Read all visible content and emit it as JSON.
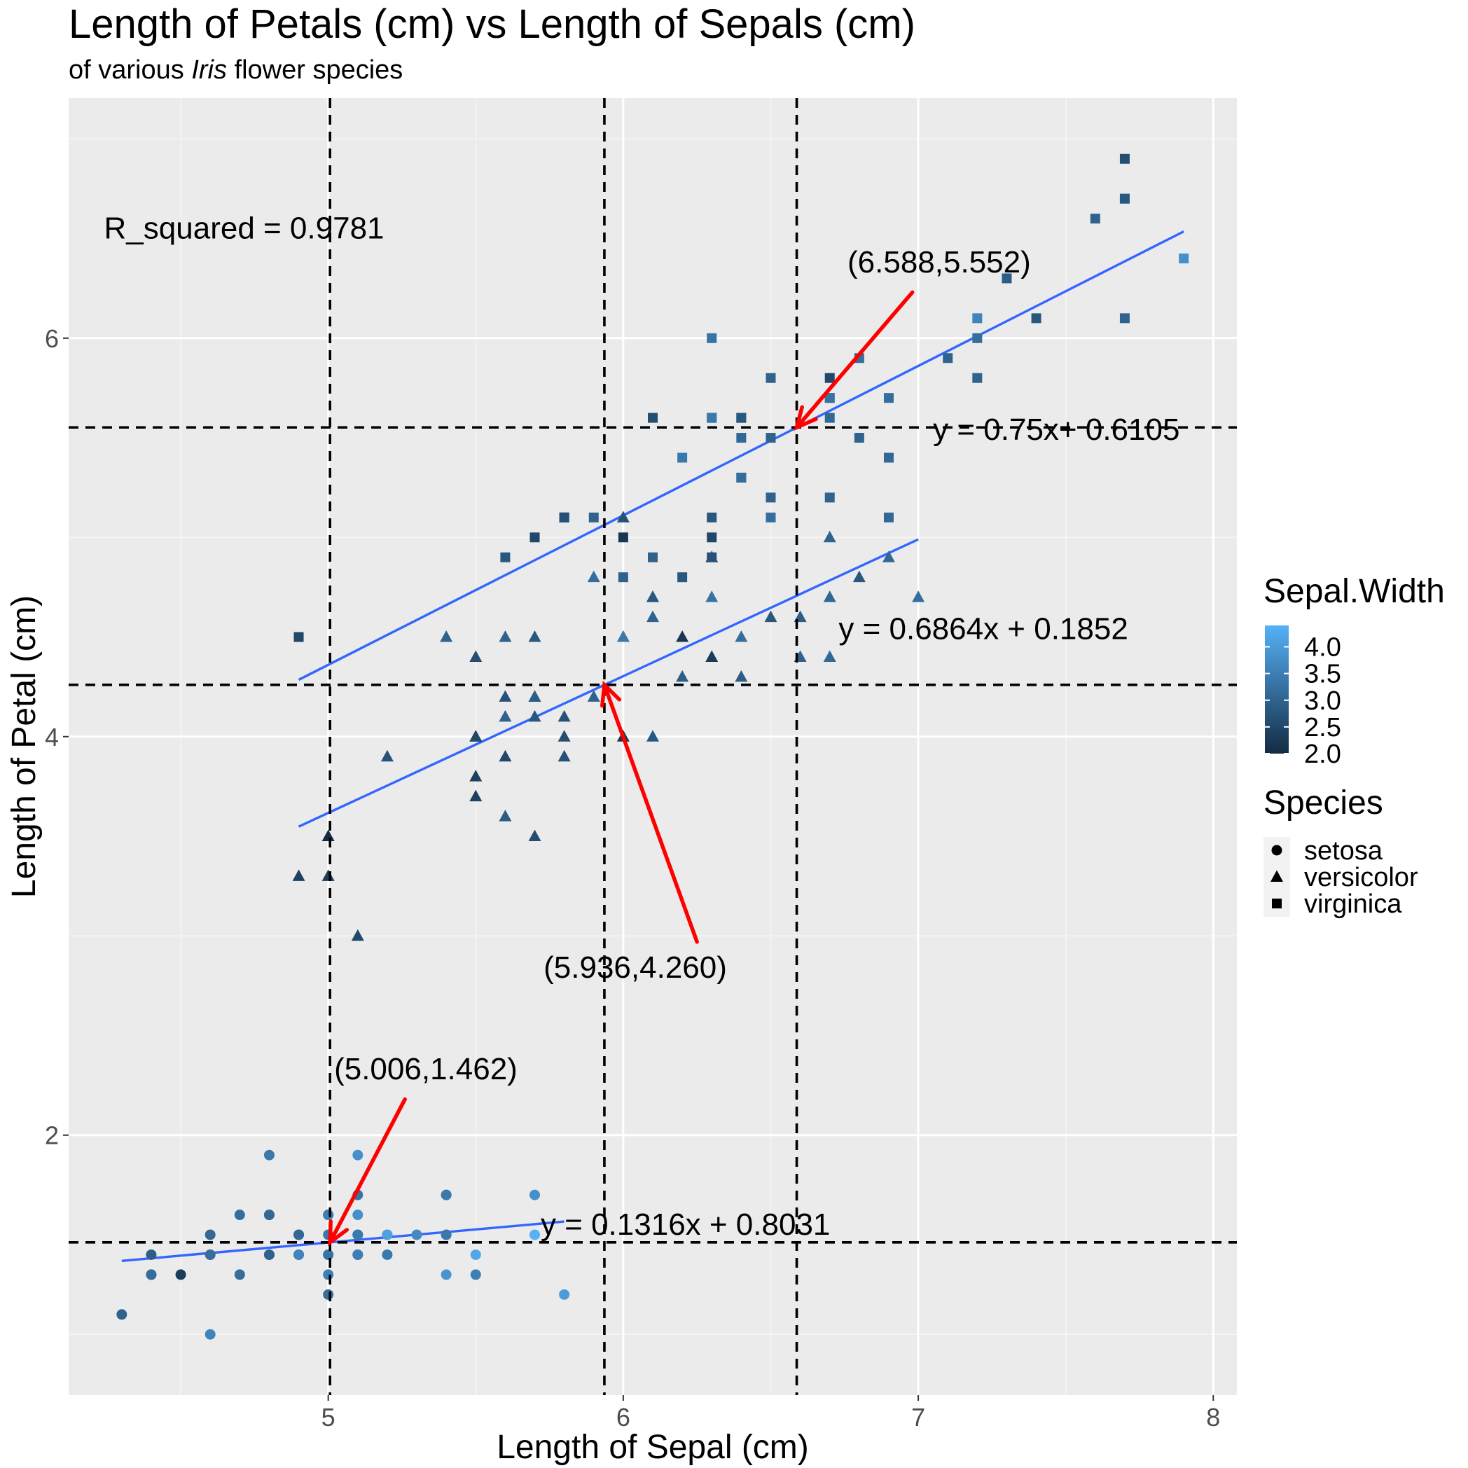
{
  "chart_data": {
    "type": "scatter",
    "title": "Length of Petals (cm) vs Length of Sepals (cm)",
    "subtitle": {
      "before": "of various ",
      "italic": "Iris",
      "after": " flower species"
    },
    "xlabel": "Length of Sepal (cm)",
    "ylabel": "Length of Petal (cm)",
    "xlim": [
      4.12,
      8.08
    ],
    "ylim": [
      0.695,
      7.205
    ],
    "x_ticks": [
      5,
      6,
      7,
      8
    ],
    "y_ticks": [
      2,
      4,
      6
    ],
    "grid": true,
    "legend_position": "right",
    "color_legend": {
      "title": "Sepal.Width",
      "ticks": [
        "4.0",
        "3.5",
        "3.0",
        "2.5",
        "2.0"
      ],
      "tick_values": [
        4.0,
        3.5,
        3.0,
        2.5,
        2.0
      ],
      "range": [
        2.0,
        4.4
      ],
      "low_color": "#132B43",
      "high_color": "#56B1F7"
    },
    "shape_legend": {
      "title": "Species",
      "entries": [
        {
          "label": "setosa",
          "shape": "circle"
        },
        {
          "label": "versicolor",
          "shape": "triangle"
        },
        {
          "label": "virginica",
          "shape": "square"
        }
      ]
    },
    "series": [
      {
        "name": "setosa",
        "shape": "circle",
        "points": [
          [
            5.1,
            1.4,
            3.5
          ],
          [
            4.9,
            1.4,
            3.0
          ],
          [
            4.7,
            1.3,
            3.2
          ],
          [
            4.6,
            1.5,
            3.1
          ],
          [
            5.0,
            1.4,
            3.6
          ],
          [
            5.4,
            1.7,
            3.9
          ],
          [
            4.6,
            1.4,
            3.4
          ],
          [
            5.0,
            1.5,
            3.4
          ],
          [
            4.4,
            1.4,
            2.9
          ],
          [
            4.9,
            1.5,
            3.1
          ],
          [
            5.4,
            1.5,
            3.7
          ],
          [
            4.8,
            1.6,
            3.4
          ],
          [
            4.8,
            1.4,
            3.0
          ],
          [
            4.3,
            1.1,
            3.0
          ],
          [
            5.8,
            1.2,
            4.0
          ],
          [
            5.7,
            1.5,
            4.4
          ],
          [
            5.4,
            1.3,
            3.9
          ],
          [
            5.1,
            1.4,
            3.5
          ],
          [
            5.7,
            1.7,
            3.8
          ],
          [
            5.1,
            1.5,
            3.8
          ],
          [
            5.4,
            1.7,
            3.4
          ],
          [
            5.1,
            1.5,
            3.7
          ],
          [
            4.6,
            1.0,
            3.6
          ],
          [
            5.1,
            1.7,
            3.3
          ],
          [
            4.8,
            1.9,
            3.4
          ],
          [
            5.0,
            1.6,
            3.0
          ],
          [
            5.0,
            1.6,
            3.4
          ],
          [
            5.2,
            1.5,
            3.5
          ],
          [
            5.2,
            1.4,
            3.4
          ],
          [
            4.7,
            1.6,
            3.2
          ],
          [
            4.8,
            1.6,
            3.1
          ],
          [
            5.4,
            1.5,
            3.4
          ],
          [
            5.2,
            1.5,
            4.1
          ],
          [
            5.5,
            1.4,
            4.2
          ],
          [
            4.9,
            1.5,
            3.1
          ],
          [
            5.0,
            1.2,
            3.2
          ],
          [
            5.5,
            1.3,
            3.5
          ],
          [
            4.9,
            1.4,
            3.6
          ],
          [
            4.4,
            1.3,
            3.0
          ],
          [
            5.1,
            1.5,
            3.4
          ],
          [
            5.0,
            1.3,
            3.5
          ],
          [
            4.5,
            1.3,
            2.3
          ],
          [
            4.4,
            1.3,
            3.2
          ],
          [
            5.0,
            1.6,
            3.5
          ],
          [
            5.1,
            1.9,
            3.8
          ],
          [
            4.8,
            1.4,
            3.0
          ],
          [
            5.1,
            1.6,
            3.8
          ],
          [
            4.6,
            1.4,
            3.2
          ],
          [
            5.3,
            1.5,
            3.7
          ],
          [
            5.0,
            1.4,
            3.3
          ]
        ]
      },
      {
        "name": "versicolor",
        "shape": "triangle",
        "points": [
          [
            7.0,
            4.7,
            3.2
          ],
          [
            6.4,
            4.5,
            3.2
          ],
          [
            6.9,
            4.9,
            3.1
          ],
          [
            5.5,
            4.0,
            2.3
          ],
          [
            6.5,
            4.6,
            2.8
          ],
          [
            5.7,
            4.5,
            2.8
          ],
          [
            6.3,
            4.7,
            3.3
          ],
          [
            4.9,
            3.3,
            2.4
          ],
          [
            6.6,
            4.6,
            2.9
          ],
          [
            5.2,
            3.9,
            2.7
          ],
          [
            5.0,
            3.5,
            2.0
          ],
          [
            5.9,
            4.2,
            3.0
          ],
          [
            6.0,
            4.0,
            2.2
          ],
          [
            6.1,
            4.7,
            2.9
          ],
          [
            5.6,
            3.6,
            2.9
          ],
          [
            6.7,
            4.4,
            3.1
          ],
          [
            5.6,
            4.5,
            3.0
          ],
          [
            5.8,
            4.1,
            2.7
          ],
          [
            6.2,
            4.5,
            2.2
          ],
          [
            5.6,
            3.9,
            2.5
          ],
          [
            5.9,
            4.8,
            3.2
          ],
          [
            6.1,
            4.0,
            2.8
          ],
          [
            6.3,
            4.9,
            2.5
          ],
          [
            6.1,
            4.7,
            2.8
          ],
          [
            6.4,
            4.3,
            2.9
          ],
          [
            6.6,
            4.4,
            3.0
          ],
          [
            6.8,
            4.8,
            2.8
          ],
          [
            6.7,
            5.0,
            3.0
          ],
          [
            6.0,
            4.5,
            2.9
          ],
          [
            5.7,
            3.5,
            2.6
          ],
          [
            5.5,
            3.8,
            2.4
          ],
          [
            5.5,
            3.7,
            2.4
          ],
          [
            5.8,
            3.9,
            2.7
          ],
          [
            6.0,
            5.1,
            2.7
          ],
          [
            5.4,
            4.5,
            3.0
          ],
          [
            6.0,
            4.5,
            3.4
          ],
          [
            6.7,
            4.7,
            3.1
          ],
          [
            6.3,
            4.4,
            2.3
          ],
          [
            5.6,
            4.1,
            3.0
          ],
          [
            5.5,
            4.0,
            2.5
          ],
          [
            5.5,
            4.4,
            2.6
          ],
          [
            6.1,
            4.6,
            3.0
          ],
          [
            5.8,
            4.0,
            2.6
          ],
          [
            5.0,
            3.3,
            2.3
          ],
          [
            5.6,
            4.2,
            2.7
          ],
          [
            5.7,
            4.2,
            3.0
          ],
          [
            5.7,
            4.2,
            2.9
          ],
          [
            6.2,
            4.3,
            2.9
          ],
          [
            5.1,
            3.0,
            2.5
          ],
          [
            5.7,
            4.1,
            2.8
          ]
        ]
      },
      {
        "name": "virginica",
        "shape": "square",
        "points": [
          [
            6.3,
            6.0,
            3.3
          ],
          [
            5.8,
            5.1,
            2.7
          ],
          [
            7.1,
            5.9,
            3.0
          ],
          [
            6.3,
            5.6,
            2.9
          ],
          [
            6.5,
            5.8,
            3.0
          ],
          [
            7.6,
            6.6,
            3.0
          ],
          [
            4.9,
            4.5,
            2.5
          ],
          [
            7.3,
            6.3,
            2.9
          ],
          [
            6.7,
            5.8,
            2.5
          ],
          [
            7.2,
            6.1,
            3.6
          ],
          [
            6.5,
            5.1,
            3.2
          ],
          [
            6.4,
            5.3,
            2.7
          ],
          [
            6.8,
            5.5,
            3.0
          ],
          [
            5.7,
            5.0,
            2.5
          ],
          [
            5.8,
            5.1,
            2.8
          ],
          [
            6.4,
            5.3,
            3.2
          ],
          [
            6.5,
            5.5,
            3.0
          ],
          [
            7.7,
            6.7,
            3.8
          ],
          [
            7.7,
            6.9,
            2.6
          ],
          [
            6.0,
            5.0,
            2.2
          ],
          [
            6.9,
            5.7,
            3.2
          ],
          [
            5.6,
            4.9,
            2.8
          ],
          [
            7.7,
            6.7,
            2.8
          ],
          [
            6.3,
            4.9,
            2.7
          ],
          [
            6.7,
            5.7,
            3.3
          ],
          [
            7.2,
            6.0,
            3.2
          ],
          [
            6.2,
            4.8,
            2.8
          ],
          [
            6.1,
            4.9,
            3.0
          ],
          [
            6.4,
            5.6,
            2.8
          ],
          [
            7.2,
            5.8,
            3.0
          ],
          [
            7.4,
            6.1,
            2.8
          ],
          [
            7.9,
            6.4,
            3.8
          ],
          [
            6.4,
            5.6,
            2.8
          ],
          [
            6.3,
            5.1,
            2.8
          ],
          [
            6.1,
            5.6,
            2.6
          ],
          [
            7.7,
            6.1,
            3.0
          ],
          [
            6.3,
            5.6,
            3.4
          ],
          [
            6.4,
            5.5,
            3.1
          ],
          [
            6.0,
            4.8,
            3.0
          ],
          [
            6.9,
            5.4,
            3.1
          ],
          [
            6.7,
            5.6,
            3.1
          ],
          [
            6.9,
            5.1,
            3.1
          ],
          [
            5.8,
            5.1,
            2.7
          ],
          [
            6.8,
            5.9,
            3.2
          ],
          [
            6.7,
            5.7,
            3.3
          ],
          [
            6.7,
            5.2,
            3.0
          ],
          [
            6.3,
            5.0,
            2.5
          ],
          [
            6.5,
            5.2,
            3.0
          ],
          [
            6.2,
            5.4,
            3.4
          ],
          [
            5.9,
            5.1,
            3.0
          ]
        ]
      }
    ],
    "regression_lines": [
      {
        "species": "setosa",
        "slope": 0.1316,
        "intercept": 0.8031,
        "x_range": [
          4.3,
          5.8
        ]
      },
      {
        "species": "versicolor",
        "slope": 0.6864,
        "intercept": 0.1852,
        "x_range": [
          4.9,
          7.0
        ]
      },
      {
        "species": "virginica",
        "slope": 0.75,
        "intercept": 0.6105,
        "x_range": [
          4.9,
          7.9
        ]
      }
    ],
    "reference_lines": {
      "vertical": [
        5.006,
        5.936,
        6.588
      ],
      "horizontal": [
        1.462,
        4.26,
        5.552
      ]
    },
    "annotations": {
      "r_squared": {
        "text": "R_squared = 0.9781",
        "x": 4.24,
        "y": 6.5
      },
      "equations": [
        {
          "text": "y = 0.75x+ 0.6105",
          "x": 7.05,
          "y": 5.49
        },
        {
          "text": "y = 0.6864x + 0.1852",
          "x": 6.73,
          "y": 4.49
        },
        {
          "text": "y = 0.1316x + 0.8031",
          "x": 5.72,
          "y": 1.5
        }
      ],
      "callouts": [
        {
          "text": "(6.588,5.552)",
          "label_x": 6.76,
          "label_y": 6.33,
          "tail_x": 6.98,
          "tail_y": 6.23,
          "tip_x": 6.588,
          "tip_y": 5.552
        },
        {
          "text": "(5.936,4.260)",
          "label_x": 5.73,
          "label_y": 2.79,
          "tail_x": 6.25,
          "tail_y": 2.97,
          "tip_x": 5.936,
          "tip_y": 4.26
        },
        {
          "text": "(5.006,1.462)",
          "label_x": 5.02,
          "label_y": 2.28,
          "tail_x": 5.26,
          "tail_y": 2.18,
          "tip_x": 5.006,
          "tip_y": 1.462
        }
      ]
    },
    "colors": {
      "panel_background": "#EBEBEB",
      "grid_major": "#FFFFFF",
      "grid_minor": "#F5F5F5",
      "regression_line": "#3366FF",
      "reference_line": "#000000",
      "arrow": "#FF0000"
    }
  }
}
